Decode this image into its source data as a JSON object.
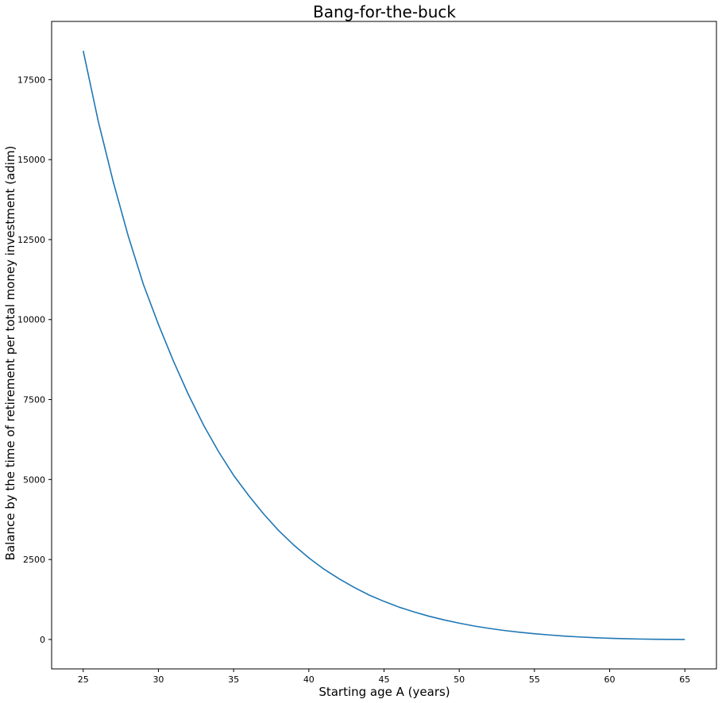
{
  "chart_data": {
    "type": "line",
    "title": "Bang-for-the-buck",
    "xlabel": "Starting age A (years)",
    "ylabel": "Balance by the time of retirement per total money investment (adim)",
    "xlim": [
      22.9,
      67.1
    ],
    "ylim": [
      -920,
      19320
    ],
    "xticks": [
      25,
      30,
      35,
      40,
      45,
      50,
      55,
      60,
      65
    ],
    "yticks": [
      0,
      2500,
      5000,
      7500,
      10000,
      12500,
      15000,
      17500
    ],
    "grid": false,
    "series": [
      {
        "color": "#1f77b4",
        "x": [
          25,
          26,
          27,
          28,
          29,
          30,
          31,
          32,
          33,
          34,
          35,
          36,
          37,
          38,
          39,
          40,
          41,
          42,
          43,
          44,
          45,
          46,
          47,
          48,
          49,
          50,
          51,
          52,
          53,
          54,
          55,
          56,
          57,
          58,
          59,
          60,
          61,
          62,
          63,
          64,
          65
        ],
        "y": [
          18400,
          16200,
          14300,
          12600,
          11100,
          9850,
          8700,
          7650,
          6700,
          5870,
          5130,
          4500,
          3920,
          3400,
          2950,
          2550,
          2200,
          1900,
          1630,
          1390,
          1190,
          1010,
          860,
          725,
          610,
          510,
          420,
          345,
          280,
          225,
          180,
          140,
          105,
          78,
          55,
          37,
          23,
          13,
          6,
          2,
          0
        ]
      }
    ]
  }
}
